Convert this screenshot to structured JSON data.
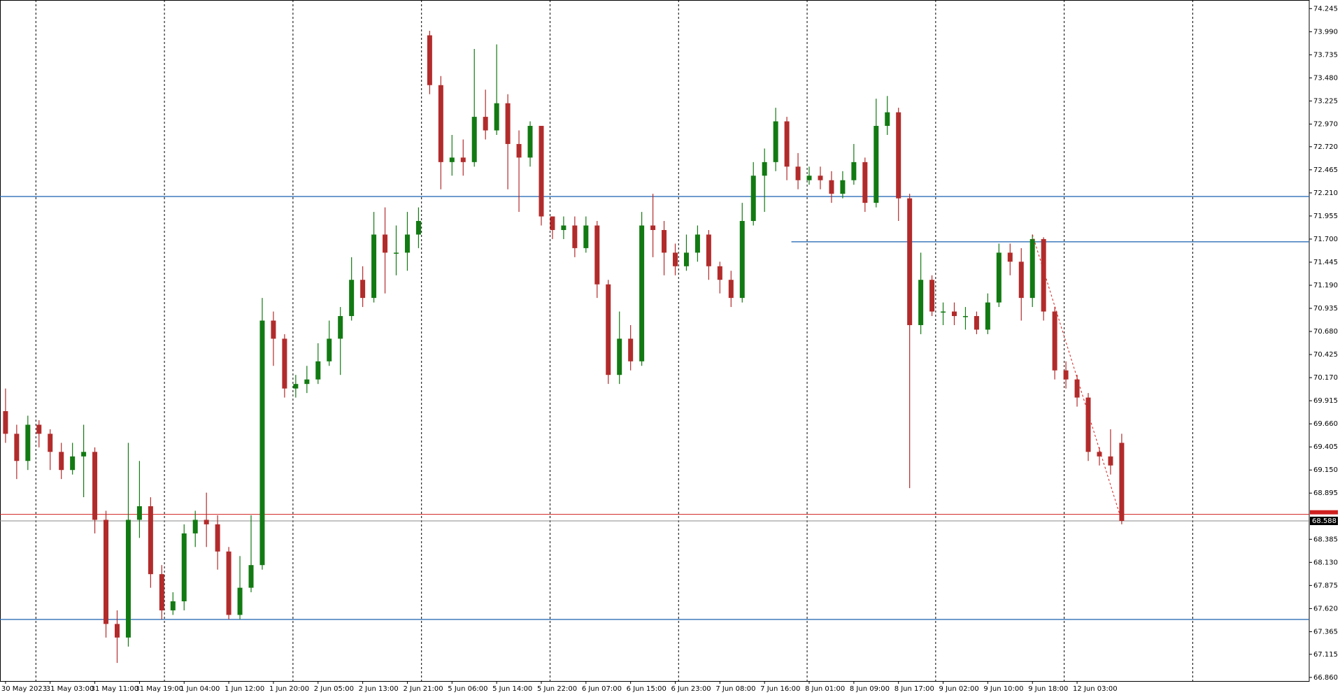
{
  "chart_data": {
    "type": "candlestick",
    "categories": [
      "30 May 2023",
      null,
      null,
      null,
      "31 May 03:00",
      null,
      null,
      null,
      "31 May 11:00",
      null,
      null,
      null,
      "31 May 19:00",
      null,
      null,
      null,
      "1 Jun 04:00",
      null,
      null,
      null,
      "1 Jun 12:00",
      null,
      null,
      null,
      "1 Jun 20:00",
      null,
      null,
      null,
      "2 Jun 05:00",
      null,
      null,
      null,
      "2 Jun 13:00",
      null,
      null,
      null,
      "2 Jun 21:00",
      null,
      null,
      null,
      "5 Jun 06:00",
      null,
      null,
      null,
      "5 Jun 14:00",
      null,
      null,
      null,
      "5 Jun 22:00",
      null,
      null,
      null,
      "6 Jun 07:00",
      null,
      null,
      null,
      "6 Jun 15:00",
      null,
      null,
      null,
      "6 Jun 23:00",
      null,
      null,
      null,
      "7 Jun 08:00",
      null,
      null,
      null,
      "7 Jun 16:00",
      null,
      null,
      null,
      "8 Jun 01:00",
      null,
      null,
      null,
      "8 Jun 09:00",
      null,
      null,
      null,
      "8 Jun 17:00",
      null,
      null,
      null,
      "9 Jun 02:00",
      null,
      null,
      null,
      "9 Jun 10:00",
      null,
      null,
      null,
      "9 Jun 18:00",
      null,
      null,
      null,
      "12 Jun 03:00",
      null,
      null,
      null,
      null
    ],
    "open": [
      69.8,
      69.55,
      69.25,
      69.65,
      69.55,
      69.35,
      69.15,
      69.3,
      69.35,
      68.6,
      67.45,
      67.3,
      68.6,
      68.75,
      68.0,
      67.6,
      67.7,
      68.45,
      68.6,
      68.55,
      68.25,
      67.55,
      67.85,
      68.1,
      70.8,
      70.6,
      70.05,
      70.1,
      70.15,
      70.35,
      70.6,
      70.85,
      71.25,
      71.05,
      71.75,
      71.55,
      71.55,
      71.75,
      73.95,
      73.4,
      72.55,
      72.6,
      72.55,
      73.05,
      72.9,
      73.2,
      72.75,
      72.6,
      72.95,
      71.95,
      71.8,
      71.85,
      71.6,
      71.85,
      71.2,
      70.2,
      70.6,
      70.35,
      71.85,
      71.8,
      71.55,
      71.4,
      71.55,
      71.75,
      71.4,
      71.25,
      71.05,
      71.9,
      72.4,
      72.55,
      73.0,
      72.5,
      72.35,
      72.4,
      72.35,
      72.2,
      72.35,
      72.55,
      72.1,
      72.95,
      73.1,
      72.15,
      70.75,
      71.25,
      70.9,
      70.9,
      70.85,
      70.85,
      70.7,
      71.0,
      71.55,
      71.45,
      71.05,
      71.7,
      70.9,
      70.25,
      70.15,
      69.95,
      69.35,
      69.3,
      69.45
    ],
    "high": [
      70.05,
      69.65,
      69.75,
      69.7,
      69.6,
      69.45,
      69.45,
      69.65,
      69.4,
      68.7,
      67.6,
      69.45,
      69.25,
      68.85,
      68.1,
      67.8,
      68.55,
      68.7,
      68.9,
      68.65,
      68.3,
      68.2,
      68.65,
      71.05,
      70.9,
      70.65,
      70.2,
      70.3,
      70.55,
      70.8,
      70.95,
      71.5,
      71.4,
      72.0,
      72.05,
      71.85,
      72.0,
      72.05,
      74.0,
      73.5,
      72.85,
      72.8,
      73.8,
      73.35,
      73.85,
      73.3,
      72.9,
      73.0,
      72.95,
      71.95,
      71.95,
      71.95,
      71.95,
      71.9,
      71.25,
      70.9,
      70.75,
      72.0,
      72.2,
      71.9,
      71.65,
      71.75,
      71.85,
      71.8,
      71.45,
      71.35,
      72.1,
      72.55,
      72.7,
      73.15,
      73.05,
      72.65,
      72.5,
      72.5,
      72.45,
      72.45,
      72.75,
      72.6,
      73.25,
      73.28,
      73.15,
      72.2,
      71.55,
      71.3,
      71.0,
      71.0,
      70.95,
      70.9,
      71.1,
      71.65,
      71.65,
      71.6,
      71.75,
      71.72,
      70.95,
      70.35,
      70.2,
      70.0,
      69.4,
      69.6,
      69.55
    ],
    "low": [
      69.45,
      69.05,
      69.15,
      69.4,
      69.15,
      69.05,
      69.1,
      68.85,
      68.45,
      67.3,
      67.02,
      67.2,
      68.4,
      67.85,
      67.5,
      67.55,
      67.6,
      68.3,
      68.3,
      68.05,
      67.5,
      67.5,
      67.8,
      68.05,
      70.3,
      69.95,
      69.95,
      70.0,
      70.1,
      70.3,
      70.2,
      70.8,
      70.95,
      71.0,
      71.1,
      71.3,
      71.35,
      71.6,
      73.3,
      72.25,
      72.4,
      72.4,
      72.5,
      72.8,
      72.85,
      72.25,
      72.0,
      72.5,
      71.85,
      71.7,
      71.7,
      71.5,
      71.55,
      71.05,
      70.1,
      70.1,
      70.25,
      70.3,
      71.5,
      71.3,
      71.3,
      71.35,
      71.45,
      71.25,
      71.1,
      70.95,
      71.0,
      71.85,
      72.0,
      72.45,
      72.35,
      72.25,
      72.3,
      72.25,
      72.1,
      72.15,
      72.3,
      72.0,
      72.05,
      72.85,
      71.9,
      68.95,
      70.65,
      70.85,
      70.75,
      70.75,
      70.7,
      70.65,
      70.65,
      70.95,
      71.3,
      70.8,
      70.95,
      70.8,
      70.15,
      70.05,
      69.85,
      69.25,
      69.2,
      69.1,
      68.55
    ],
    "close": [
      69.55,
      69.25,
      69.65,
      69.55,
      69.35,
      69.15,
      69.3,
      69.35,
      68.6,
      67.45,
      67.3,
      68.6,
      68.75,
      68.0,
      67.6,
      67.7,
      68.45,
      68.6,
      68.55,
      68.25,
      67.55,
      67.85,
      68.1,
      70.8,
      70.6,
      70.05,
      70.1,
      70.15,
      70.35,
      70.6,
      70.85,
      71.25,
      71.05,
      71.75,
      71.55,
      71.55,
      71.75,
      71.9,
      73.4,
      72.55,
      72.6,
      72.55,
      73.05,
      72.9,
      73.2,
      72.75,
      72.6,
      72.95,
      71.95,
      71.8,
      71.85,
      71.6,
      71.85,
      71.2,
      70.2,
      70.6,
      70.35,
      71.85,
      71.8,
      71.55,
      71.4,
      71.55,
      71.75,
      71.4,
      71.25,
      71.05,
      71.9,
      72.4,
      72.55,
      73.0,
      72.5,
      72.35,
      72.4,
      72.35,
      72.2,
      72.35,
      72.55,
      72.1,
      72.95,
      73.1,
      72.15,
      70.75,
      71.25,
      70.9,
      70.9,
      70.85,
      70.85,
      70.7,
      71.0,
      71.55,
      71.45,
      71.05,
      71.7,
      70.9,
      70.25,
      70.15,
      69.95,
      69.35,
      69.3,
      69.2,
      68.588
    ],
    "up_color": "#127a12",
    "down_color": "#b22b2b",
    "ylim": [
      66.82,
      74.34
    ],
    "yticks": [
      74.245,
      {
        "value": 73.99,
        "label": "73.990"
      },
      73.735,
      {
        "value": 73.48,
        "label": "73.480"
      },
      73.225,
      {
        "value": 72.97,
        "label": "72.970"
      },
      {
        "value": 72.72,
        "label": "72.720"
      },
      72.465,
      {
        "value": 72.21,
        "label": "72.210"
      },
      71.955,
      {
        "value": 71.7,
        "label": "71.700"
      },
      71.445,
      {
        "value": 71.19,
        "label": "71.190"
      },
      70.935,
      {
        "value": 70.68,
        "label": "70.680"
      },
      70.425,
      {
        "value": 70.17,
        "label": "70.170"
      },
      69.915,
      {
        "value": 69.66,
        "label": "69.660"
      },
      69.405,
      {
        "value": 69.15,
        "label": "69.150"
      },
      68.895,
      68.385,
      {
        "value": 68.13,
        "label": "68.130"
      },
      67.875,
      {
        "value": 67.62,
        "label": "67.620"
      },
      67.365,
      67.115,
      {
        "value": 66.86,
        "label": "66.860"
      }
    ],
    "levels": [
      72.17,
      71.67,
      67.5
    ],
    "level_color": "#2e6fb7",
    "ask": 68.66,
    "ask_color": "#d02020",
    "bid": 68.588,
    "grid": true
  }
}
